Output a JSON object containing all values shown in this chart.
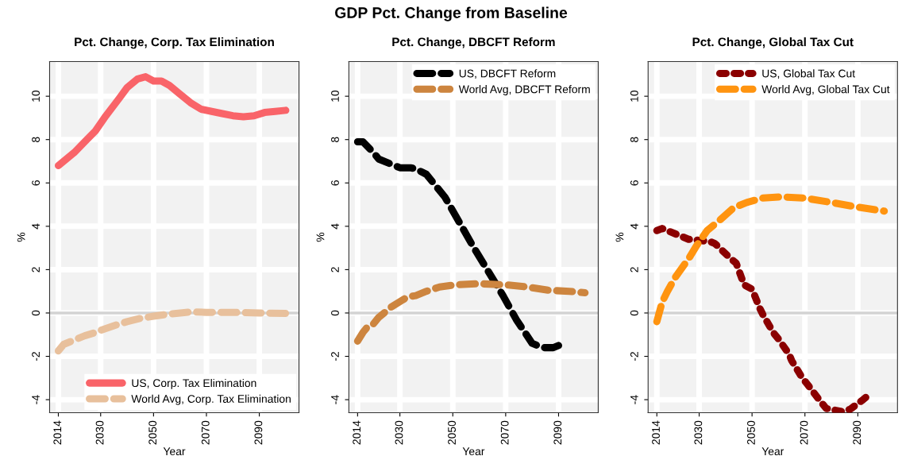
{
  "chart_data": [
    {
      "type": "line",
      "title": "Pct. Change, Corp. Tax Elimination",
      "annotations": [
        "GDP Pct. Change from Baseline"
      ],
      "xlabel": "Year",
      "ylabel": "%",
      "xlim": [
        2010.7,
        2105
      ],
      "ylim": [
        -4.6,
        11.6
      ],
      "xticks": [
        2014,
        2030,
        2050,
        2070,
        2090
      ],
      "yticks": [
        -4,
        -2,
        0,
        2,
        4,
        6,
        8,
        10
      ],
      "grid": true,
      "legend": "bottom right",
      "ref_lines": [
        {
          "axis": "y",
          "value": 0,
          "color": "#d3d3d3"
        }
      ],
      "series": [
        {
          "name": "US, Corp. Tax Elimination",
          "color": "#f96469",
          "line_style": "solid",
          "x": [
            2014,
            2018,
            2020,
            2024,
            2028,
            2032,
            2037,
            2040,
            2044,
            2047,
            2050,
            2053,
            2056,
            2060,
            2064,
            2068,
            2072,
            2076,
            2080,
            2084,
            2088,
            2092,
            2096,
            2100
          ],
          "values": [
            6.8,
            7.2,
            7.4,
            7.9,
            8.4,
            9.1,
            9.9,
            10.4,
            10.8,
            10.9,
            10.7,
            10.7,
            10.5,
            10.1,
            9.7,
            9.4,
            9.3,
            9.2,
            9.1,
            9.05,
            9.1,
            9.25,
            9.3,
            9.35
          ]
        },
        {
          "name": "World Avg, Corp. Tax Elimination",
          "color": "#e8c09c",
          "line_style": "dashed",
          "x": [
            2014,
            2016,
            2020,
            2024,
            2028,
            2030,
            2036,
            2040,
            2045,
            2050,
            2056,
            2064,
            2070,
            2080,
            2090,
            2100
          ],
          "values": [
            -1.75,
            -1.45,
            -1.25,
            -1.05,
            -0.9,
            -0.8,
            -0.55,
            -0.4,
            -0.25,
            -0.15,
            -0.05,
            0.05,
            0.03,
            0.03,
            0.0,
            -0.02
          ]
        }
      ]
    },
    {
      "type": "line",
      "title": "Pct. Change, DBCFT Reform",
      "xlabel": "Year",
      "ylabel": "%",
      "xlim": [
        2010.7,
        2105
      ],
      "ylim": [
        -4.6,
        11.6
      ],
      "xticks": [
        2014,
        2030,
        2050,
        2070,
        2090
      ],
      "yticks": [
        -4,
        -2,
        0,
        2,
        4,
        6,
        8,
        10
      ],
      "grid": true,
      "legend": "top right",
      "ref_lines": [
        {
          "axis": "y",
          "value": 0,
          "color": "#d3d3d3"
        }
      ],
      "series": [
        {
          "name": "US, DBCFT Reform",
          "color": "#000000",
          "line_style": "dashed",
          "x": [
            2014,
            2016,
            2020,
            2022,
            2030,
            2034,
            2036,
            2040,
            2047,
            2051,
            2058,
            2063,
            2069,
            2074,
            2080,
            2084,
            2088,
            2090
          ],
          "values": [
            7.9,
            7.9,
            7.4,
            7.1,
            6.7,
            6.7,
            6.65,
            6.4,
            5.35,
            4.5,
            3.0,
            2.0,
            0.8,
            -0.3,
            -1.4,
            -1.6,
            -1.6,
            -1.5
          ]
        },
        {
          "name": "World Avg, DBCFT Reform",
          "color": "#cd853f",
          "line_style": "dashed",
          "x": [
            2014,
            2016,
            2018,
            2020,
            2022,
            2025,
            2027,
            2033,
            2036,
            2040,
            2045,
            2051,
            2060,
            2070,
            2078,
            2086,
            2094,
            2100
          ],
          "values": [
            -1.3,
            -0.9,
            -0.6,
            -0.5,
            -0.2,
            0.1,
            0.3,
            0.75,
            0.8,
            1.0,
            1.2,
            1.3,
            1.35,
            1.3,
            1.2,
            1.05,
            1.0,
            0.93
          ]
        }
      ]
    },
    {
      "type": "line",
      "title": "Pct. Change, Global Tax Cut",
      "xlabel": "Year",
      "ylabel": "%",
      "xlim": [
        2010.7,
        2105
      ],
      "ylim": [
        -4.6,
        11.6
      ],
      "xticks": [
        2014,
        2030,
        2050,
        2070,
        2090
      ],
      "yticks": [
        -4,
        -2,
        0,
        2,
        4,
        6,
        8,
        10
      ],
      "grid": true,
      "legend": "top right",
      "ref_lines": [
        {
          "axis": "y",
          "value": 0,
          "color": "#d3d3d3"
        }
      ],
      "series": [
        {
          "name": "US, Global Tax Cut",
          "color": "#8b0000",
          "line_style": "dotted",
          "x": [
            2014,
            2016,
            2024,
            2026,
            2034,
            2036,
            2042,
            2044,
            2047,
            2050,
            2053,
            2054,
            2058,
            2060,
            2064,
            2065,
            2069,
            2071,
            2076,
            2078,
            2084,
            2087,
            2092,
            2094
          ],
          "values": [
            3.8,
            3.9,
            3.5,
            3.4,
            3.3,
            3.2,
            2.5,
            2.3,
            1.3,
            1.1,
            0.2,
            -0.05,
            -0.9,
            -1.2,
            -1.9,
            -2.2,
            -3.0,
            -3.3,
            -4.1,
            -4.4,
            -4.55,
            -4.45,
            -4.0,
            -3.8
          ]
        },
        {
          "name": "World Avg, Global Tax Cut",
          "color": "#ff9410",
          "line_style": "dashed",
          "x": [
            2014,
            2016,
            2018,
            2021,
            2026,
            2029,
            2033,
            2037,
            2043,
            2048,
            2054,
            2060,
            2062,
            2070,
            2080,
            2089,
            2100
          ],
          "values": [
            -0.4,
            0.5,
            1.0,
            1.65,
            2.5,
            3.1,
            3.8,
            4.2,
            4.85,
            5.1,
            5.3,
            5.35,
            5.35,
            5.3,
            5.1,
            4.9,
            4.7
          ]
        }
      ]
    }
  ]
}
